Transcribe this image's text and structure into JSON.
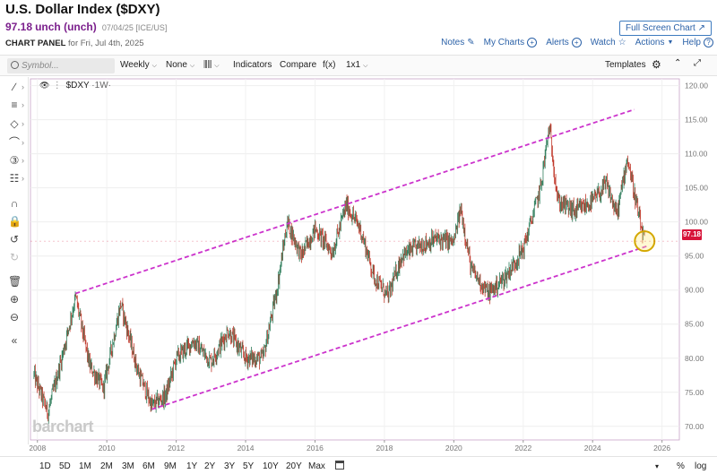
{
  "header": {
    "title": "U.S. Dollar Index ($DXY)",
    "price": "97.18",
    "change": "unch (unch)",
    "date_exchange": "07/04/25 [ICE/US]",
    "full_screen_label": "Full Screen Chart",
    "panel_label": "CHART PANEL",
    "panel_date": "for Fri, Jul 4th, 2025",
    "actions": {
      "notes": "Notes",
      "my_charts": "My Charts",
      "alerts": "Alerts",
      "watch": "Watch",
      "actions": "Actions",
      "help": "Help"
    }
  },
  "toolbar": {
    "search_placeholder": "Symbol...",
    "interval": "Weekly",
    "studies": "None",
    "chart_type_icon": "candles-icon",
    "indicators": "Indicators",
    "compare": "Compare",
    "fx": "f(x)",
    "layout": "1x1",
    "templates": "Templates"
  },
  "legend": {
    "symbol": "$DXY",
    "period": "·1W·"
  },
  "last_price_tag": "97.18",
  "watermark": "barchart",
  "ranges": [
    "1D",
    "5D",
    "1M",
    "2M",
    "3M",
    "6M",
    "9M",
    "1Y",
    "2Y",
    "3Y",
    "5Y",
    "10Y",
    "20Y",
    "Max"
  ],
  "bottom_right": {
    "percent": "%",
    "log": "log"
  },
  "colors": {
    "up": "#2e7d5b",
    "down": "#c0392b",
    "channel": "#cc33cc",
    "price_tag": "#d7143a",
    "link": "#2c62a8"
  },
  "chart_data": {
    "type": "line",
    "title": "U.S. Dollar Index ($DXY)",
    "interval": "Weekly",
    "x": [
      2007.9,
      2008.3,
      2008.7,
      2009.1,
      2009.5,
      2009.9,
      2010.4,
      2010.9,
      2011.3,
      2011.7,
      2012.0,
      2012.5,
      2013.0,
      2013.5,
      2014.0,
      2014.5,
      2014.9,
      2015.2,
      2015.6,
      2016.0,
      2016.5,
      2016.9,
      2017.3,
      2017.7,
      2018.1,
      2018.5,
      2019.0,
      2019.5,
      2020.0,
      2020.2,
      2020.5,
      2021.0,
      2021.5,
      2022.0,
      2022.5,
      2022.75,
      2023.0,
      2023.5,
      2024.0,
      2024.4,
      2024.7,
      2025.0,
      2025.4,
      2025.5
    ],
    "y": [
      77.5,
      72.0,
      80.0,
      89.0,
      79.0,
      75.5,
      88.0,
      78.0,
      73.0,
      74.5,
      80.0,
      82.5,
      79.5,
      84.0,
      80.0,
      80.0,
      90.0,
      100.0,
      95.0,
      99.0,
      95.5,
      102.5,
      99.0,
      92.0,
      89.0,
      95.0,
      96.5,
      97.5,
      97.0,
      102.0,
      93.0,
      89.5,
      92.0,
      96.0,
      105.0,
      114.0,
      103.0,
      101.5,
      103.0,
      105.5,
      101.0,
      109.5,
      99.0,
      97.18
    ],
    "ylim": [
      68,
      121
    ],
    "xlim": [
      2007.8,
      2026.5
    ],
    "x_ticks": [
      "2008",
      "2010",
      "2012",
      "2014",
      "2016",
      "2018",
      "2020",
      "2022",
      "2024",
      "2026"
    ],
    "y_ticks": [
      "70.00",
      "75.00",
      "80.00",
      "85.00",
      "90.00",
      "95.00",
      "100.00",
      "105.00",
      "110.00",
      "115.00",
      "120.00"
    ],
    "channel_upper": {
      "x": [
        2009.1,
        2025.2
      ],
      "y": [
        89.5,
        116.5
      ]
    },
    "channel_lower": {
      "x": [
        2011.3,
        2025.6
      ],
      "y": [
        72.5,
        96.5
      ]
    },
    "highlight_point": {
      "x": 2025.5,
      "y": 97.18
    },
    "last_value": 97.18,
    "grid": true
  }
}
